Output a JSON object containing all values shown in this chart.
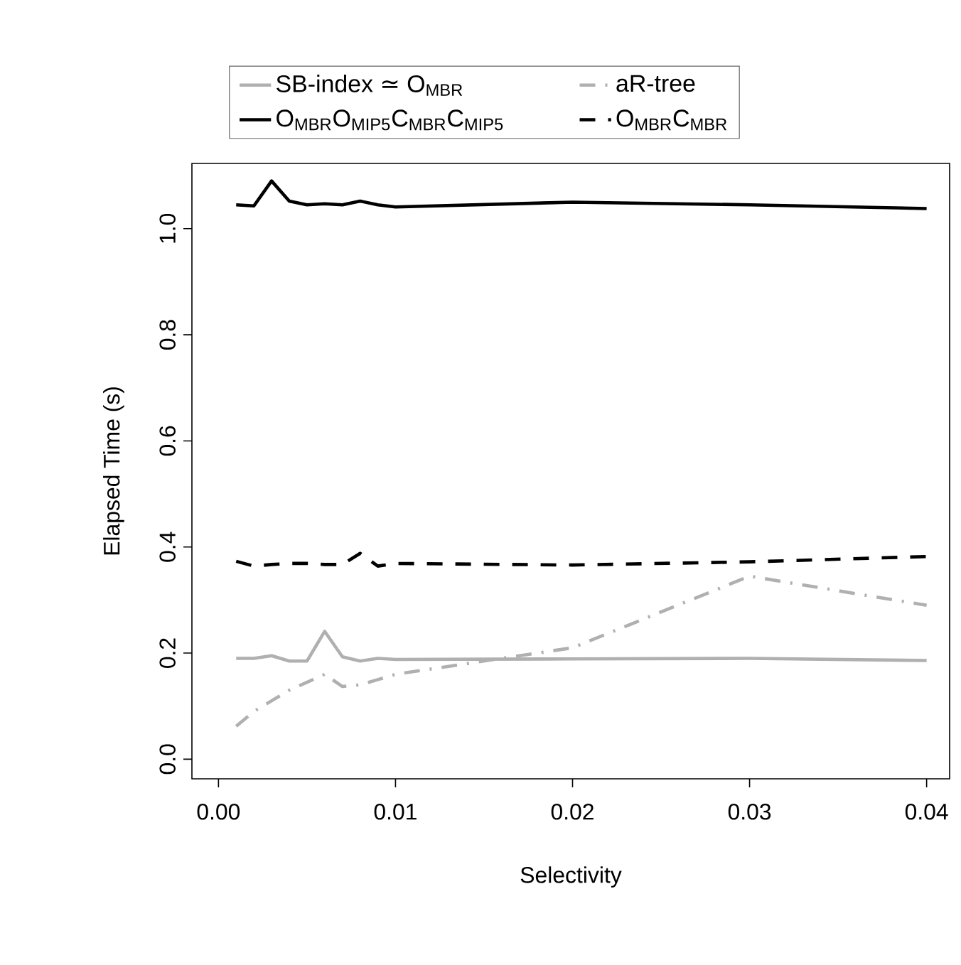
{
  "chart_data": {
    "type": "line",
    "xlabel": "Selectivity",
    "ylabel": "Elapsed Time (s)",
    "x": [
      0.001,
      0.002,
      0.003,
      0.004,
      0.005,
      0.006,
      0.007,
      0.008,
      0.009,
      0.01,
      0.02,
      0.03,
      0.04
    ],
    "series": [
      {
        "name": "SB-index ≃ O$_{MBR}$",
        "color": "#b0b0b0",
        "line_style": "solid",
        "values": [
          0.19,
          0.19,
          0.195,
          0.185,
          0.185,
          0.241,
          0.193,
          0.185,
          0.19,
          0.188,
          0.189,
          0.19,
          0.186
        ]
      },
      {
        "name": "aR-tree",
        "color": "#b0b0b0",
        "line_style": "dashdot",
        "values": [
          0.062,
          0.09,
          0.11,
          0.13,
          0.145,
          0.16,
          0.137,
          0.14,
          0.15,
          0.16,
          0.21,
          0.345,
          0.29
        ]
      },
      {
        "name": "O$_{MBR}$O$_{MIP5}$C$_{MBR}$C$_{MIP5}$",
        "color": "#000000",
        "line_style": "solid",
        "values": [
          1.045,
          1.043,
          1.09,
          1.052,
          1.045,
          1.047,
          1.045,
          1.052,
          1.045,
          1.041,
          1.05,
          1.045,
          1.038
        ]
      },
      {
        "name": "O$_{MBR}$C$_{MBR}$",
        "color": "#000000",
        "line_style": "dashed",
        "values": [
          0.373,
          0.364,
          0.367,
          0.369,
          0.369,
          0.367,
          0.367,
          0.388,
          0.364,
          0.369,
          0.366,
          0.372,
          0.382
        ]
      }
    ],
    "xlim": [
      -0.0015,
      0.0413
    ],
    "ylim": [
      -0.037,
      1.123
    ],
    "xticks": [
      {
        "value": 0,
        "label": "0.00"
      },
      {
        "value": 0.01,
        "label": "0.01"
      },
      {
        "value": 0.02,
        "label": "0.02"
      },
      {
        "value": 0.03,
        "label": "0.03"
      },
      {
        "value": 0.04,
        "label": "0.04"
      }
    ],
    "yticks": [
      {
        "value": 0,
        "label": "0.0"
      },
      {
        "value": 0.2,
        "label": "0.2"
      },
      {
        "value": 0.4,
        "label": "0.4"
      },
      {
        "value": 0.6,
        "label": "0.6"
      },
      {
        "value": 0.8,
        "label": "0.8"
      },
      {
        "value": 1,
        "label": "1.0"
      }
    ],
    "grid": false,
    "legend": "top",
    "marker": "none"
  }
}
